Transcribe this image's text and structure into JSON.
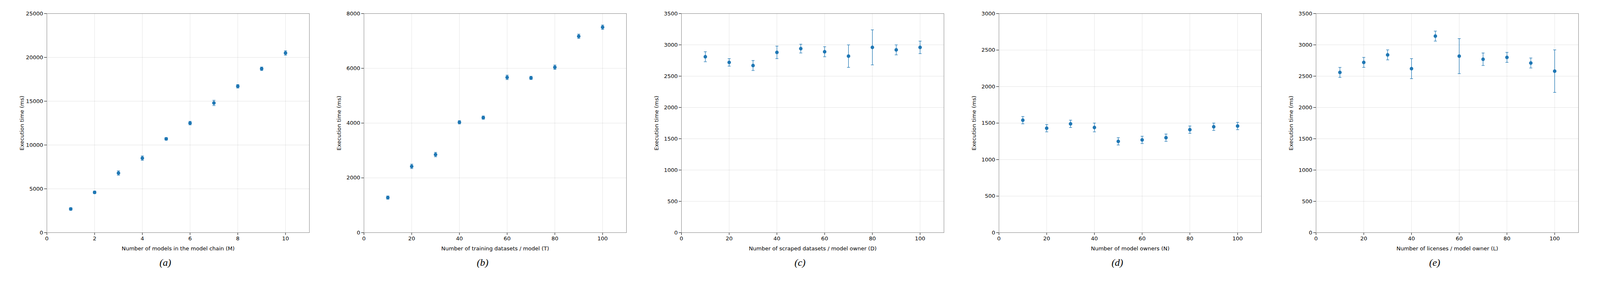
{
  "chart_data": [
    {
      "type": "scatter",
      "x": [
        1,
        2,
        3,
        4,
        5,
        6,
        7,
        8,
        9,
        10
      ],
      "values": [
        2700,
        4600,
        6800,
        8500,
        10700,
        12500,
        14800,
        16700,
        18700,
        20500
      ],
      "yerr": [
        150,
        150,
        250,
        250,
        150,
        200,
        300,
        200,
        200,
        250
      ],
      "xlabel": "Number of models in the model chain (M)",
      "ylabel": "Execution time (ms)",
      "ylim": [
        0,
        25000
      ],
      "yticks": [
        0,
        5000,
        10000,
        15000,
        20000,
        25000
      ],
      "xlim": [
        0,
        11
      ],
      "xticks": [
        0,
        2,
        4,
        6,
        8,
        10
      ],
      "caption": "(a)",
      "color": "#1f77b4",
      "marker": "circle",
      "grid": true
    },
    {
      "type": "scatter",
      "x": [
        10,
        20,
        30,
        40,
        50,
        60,
        70,
        80,
        90,
        100
      ],
      "values": [
        1280,
        2420,
        2850,
        4030,
        4200,
        5670,
        5650,
        6040,
        7170,
        7500
      ],
      "yerr": [
        60,
        80,
        80,
        60,
        60,
        80,
        60,
        80,
        80,
        80
      ],
      "xlabel": "Number of training datasets / model (T)",
      "ylabel": "Execution time (ms)",
      "ylim": [
        0,
        8000
      ],
      "yticks": [
        0,
        2000,
        4000,
        6000,
        8000
      ],
      "xlim": [
        0,
        110
      ],
      "xticks": [
        0,
        20,
        40,
        60,
        80,
        100
      ],
      "caption": "(b)",
      "color": "#1f77b4",
      "marker": "circle",
      "grid": true
    },
    {
      "type": "scatter",
      "x": [
        10,
        20,
        30,
        40,
        50,
        60,
        70,
        80,
        90,
        100
      ],
      "values": [
        2810,
        2720,
        2670,
        2880,
        2940,
        2890,
        2820,
        2960,
        2920,
        2960
      ],
      "yerr": [
        80,
        60,
        80,
        100,
        70,
        80,
        180,
        280,
        80,
        100
      ],
      "xlabel": "Number of scraped datasets / model owner (D)",
      "ylabel": "Execution time (ms)",
      "ylim": [
        0,
        3500
      ],
      "yticks": [
        0,
        500,
        1000,
        1500,
        2000,
        2500,
        3000,
        3500
      ],
      "xlim": [
        0,
        110
      ],
      "xticks": [
        0,
        20,
        40,
        60,
        80,
        100
      ],
      "caption": "(c)",
      "color": "#1f77b4",
      "marker": "circle",
      "grid": true
    },
    {
      "type": "scatter",
      "x": [
        10,
        20,
        30,
        40,
        50,
        60,
        70,
        80,
        90,
        100
      ],
      "values": [
        1540,
        1430,
        1490,
        1440,
        1250,
        1270,
        1300,
        1410,
        1450,
        1460
      ],
      "yerr": [
        50,
        50,
        50,
        60,
        50,
        50,
        50,
        50,
        50,
        50
      ],
      "xlabel": "Number of model owners (N)",
      "ylabel": "Execution time (ms)",
      "ylim": [
        0,
        3000
      ],
      "yticks": [
        0,
        500,
        1000,
        1500,
        2000,
        2500,
        3000
      ],
      "xlim": [
        0,
        110
      ],
      "xticks": [
        0,
        20,
        40,
        60,
        80,
        100
      ],
      "caption": "(d)",
      "color": "#1f77b4",
      "marker": "circle",
      "grid": true
    },
    {
      "type": "scatter",
      "x": [
        10,
        20,
        30,
        40,
        50,
        60,
        70,
        80,
        90,
        100
      ],
      "values": [
        2560,
        2720,
        2840,
        2620,
        3140,
        2820,
        2770,
        2800,
        2710,
        2580
      ],
      "yerr": [
        80,
        80,
        80,
        160,
        80,
        280,
        100,
        80,
        80,
        340
      ],
      "xlabel": "Number of licenses / model owner (L)",
      "ylabel": "Execution time (ms)",
      "ylim": [
        0,
        3500
      ],
      "yticks": [
        0,
        500,
        1000,
        1500,
        2000,
        2500,
        3000,
        3500
      ],
      "xlim": [
        0,
        110
      ],
      "xticks": [
        0,
        20,
        40,
        60,
        80,
        100
      ],
      "caption": "(e)",
      "color": "#1f77b4",
      "marker": "circle",
      "grid": true
    }
  ]
}
